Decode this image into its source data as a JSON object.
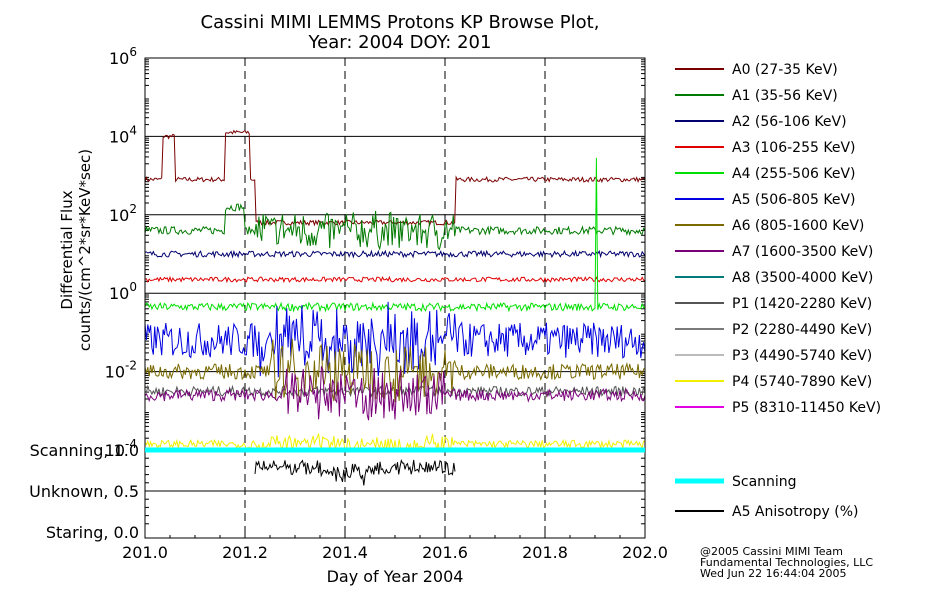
{
  "chart_data": {
    "type": "line",
    "title_line1": "Cassini MIMI LEMMS Protons KP Browse Plot,",
    "title_line2": "Year: 2004 DOY: 201",
    "ylabel_line1": "Differential Flux",
    "ylabel_line2": "counts/(cm^2*sr*KeV*sec)",
    "xlabel": "Day of Year 2004",
    "xlim": [
      201.0,
      202.0
    ],
    "ylim_log10": [
      -4,
      6
    ],
    "x_ticks": [
      "201.0",
      "201.2",
      "201.4",
      "201.6",
      "201.8",
      "202.0"
    ],
    "x_tick_values": [
      201.0,
      201.2,
      201.4,
      201.6,
      201.8,
      202.0
    ],
    "y_tick_base": "10",
    "y_tick_exponents": [
      "6",
      "4",
      "2",
      "0",
      "-2",
      "-4"
    ],
    "y_tick_exp_values": [
      6,
      4,
      2,
      0,
      -2,
      -4
    ],
    "dashed_vlines": [
      201.2,
      201.4,
      201.6,
      201.8
    ],
    "series": [
      {
        "name": "A0 (27-35 KeV)",
        "color": "#7a0000",
        "level": 2.9
      },
      {
        "name": "A1 (35-56 KeV)",
        "color": "#007a00",
        "level": 1.6
      },
      {
        "name": "A2 (56-106 KeV)",
        "color": "#00006e",
        "level": 1.0
      },
      {
        "name": "A3 (106-255 KeV)",
        "color": "#e00000",
        "level": 0.35
      },
      {
        "name": "A4 (255-506 KeV)",
        "color": "#00e000",
        "level": -0.35
      },
      {
        "name": "A5 (506-805 KeV)",
        "color": "#0000e0",
        "level": -1.2
      },
      {
        "name": "A6 (805-1600 KeV)",
        "color": "#7a6a00",
        "level": -2.0
      },
      {
        "name": "A7 (1600-3500 KeV)",
        "color": "#7a007a",
        "level": -2.6
      },
      {
        "name": "A8 (3500-4000 KeV)",
        "color": "#007a7a",
        "level": null
      },
      {
        "name": "P1 (1420-2280 KeV)",
        "color": "#555555",
        "level": -2.5
      },
      {
        "name": "P2 (2280-4490 KeV)",
        "color": "#7a7a7a",
        "level": null
      },
      {
        "name": "P3 (4490-5740 KeV)",
        "color": "#bbbbbb",
        "level": null
      },
      {
        "name": "P4 (5740-7890 KeV)",
        "color": "#f0f000",
        "level": -3.85
      },
      {
        "name": "P5 (8310-11450 KeV)",
        "color": "#e000e0",
        "level": null
      }
    ],
    "lower_panel": {
      "ytick_labels": [
        "Scanning, 1.0",
        "Unknown, 0.5",
        "Staring, 0.0"
      ],
      "ytick_values": [
        1.0,
        0.5,
        0.0
      ],
      "series": [
        {
          "name": "Scanning",
          "color": "#00ffff",
          "value": 1.0
        },
        {
          "name": "A5 Anisotropy (%)",
          "color": "#000000",
          "xrange": [
            201.22,
            201.62
          ]
        }
      ]
    },
    "credit_line1": "@2005 Cassini MIMI Team",
    "credit_line2": "Fundamental Technologies, LLC",
    "credit_line3": "Wed Jun 22 16:44:04 2005"
  }
}
